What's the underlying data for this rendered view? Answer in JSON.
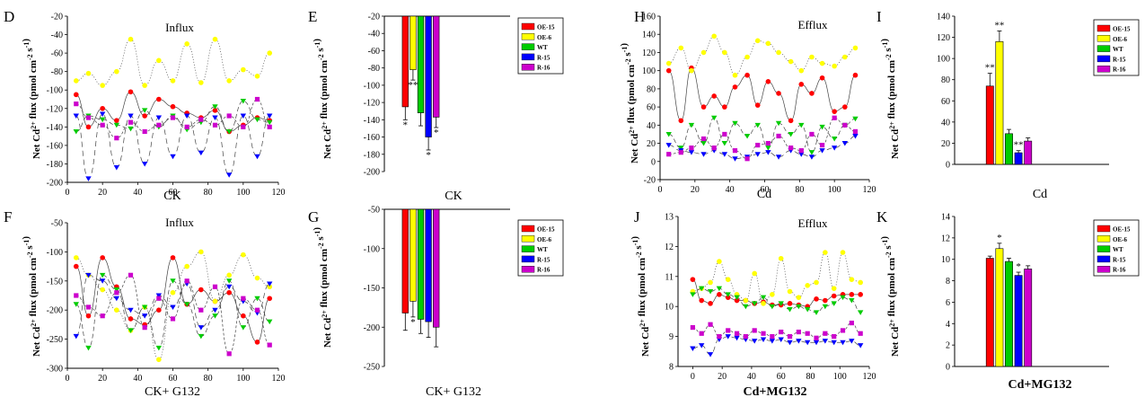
{
  "colors": {
    "OE-15": "#ff0000",
    "OE-6": "#ffff00",
    "WT": "#00cc00",
    "R-15": "#0000ff",
    "R-16": "#cc00cc"
  },
  "legend_labels": [
    "OE-15",
    "OE-6",
    "WT",
    "R-15",
    "R-16"
  ],
  "chart_data": [
    {
      "panel": "D",
      "type": "line",
      "annotation": "Influx",
      "xlabel": "CK",
      "ylabel": "Net Cd2+ flux (pmol cm-2 s-1)",
      "xlim": [
        0,
        120
      ],
      "ylim": [
        -200,
        -20
      ],
      "xticks": [
        0,
        20,
        40,
        60,
        80,
        100,
        120
      ],
      "yticks": [
        -20,
        -40,
        -60,
        -80,
        -100,
        -120,
        -140,
        -160,
        -180,
        -200
      ],
      "series": [
        {
          "name": "OE-15",
          "marker": "circle",
          "x": [
            5,
            12,
            20,
            28,
            36,
            44,
            52,
            60,
            68,
            76,
            84,
            92,
            100,
            108,
            115
          ],
          "y": [
            -105,
            -140,
            -120,
            -133,
            -102,
            -128,
            -110,
            -118,
            -125,
            -130,
            -122,
            -145,
            -138,
            -130,
            -133
          ]
        },
        {
          "name": "OE-6",
          "marker": "circle",
          "x": [
            5,
            12,
            20,
            28,
            36,
            44,
            52,
            60,
            68,
            76,
            84,
            92,
            100,
            108,
            115
          ],
          "y": [
            -90,
            -82,
            -95,
            -80,
            -45,
            -95,
            -68,
            -90,
            -50,
            -92,
            -45,
            -90,
            -78,
            -85,
            -60
          ]
        },
        {
          "name": "WT",
          "marker": "triangle-down",
          "x": [
            5,
            12,
            20,
            28,
            36,
            44,
            52,
            60,
            68,
            76,
            84,
            92,
            100,
            108,
            115
          ],
          "y": [
            -145,
            -128,
            -132,
            -138,
            -142,
            -122,
            -140,
            -128,
            -143,
            -135,
            -118,
            -145,
            -112,
            -132,
            -135
          ]
        },
        {
          "name": "R-15",
          "marker": "triangle-down",
          "x": [
            5,
            12,
            20,
            28,
            36,
            44,
            52,
            60,
            68,
            76,
            84,
            92,
            100,
            108,
            115
          ],
          "y": [
            -128,
            -196,
            -126,
            -184,
            -128,
            -180,
            -130,
            -172,
            -128,
            -168,
            -130,
            -192,
            -128,
            -172,
            -128
          ]
        },
        {
          "name": "R-16",
          "marker": "square",
          "x": [
            5,
            12,
            20,
            28,
            36,
            44,
            52,
            60,
            68,
            76,
            84,
            92,
            100,
            108,
            115
          ],
          "y": [
            -115,
            -130,
            -138,
            -152,
            -135,
            -145,
            -138,
            -130,
            -140,
            -132,
            -138,
            -128,
            -140,
            -110,
            -140
          ]
        }
      ]
    },
    {
      "panel": "E",
      "type": "bar",
      "xlabel": "CK",
      "ylabel": "Net Cd2+ flux (pmol cm-2 s-1)",
      "ylim": [
        -200,
        -20
      ],
      "yticks": [
        -20,
        -40,
        -60,
        -80,
        -100,
        -120,
        -140,
        -160,
        -180,
        -200
      ],
      "categories": [
        "OE-15",
        "OE-6",
        "WT",
        "R-15",
        "R-16"
      ],
      "values": [
        -125,
        -82,
        -132,
        -160,
        -137
      ],
      "errors": [
        15,
        12,
        15,
        15,
        12
      ],
      "sig": [
        "*",
        "**",
        "",
        "*",
        "*"
      ]
    },
    {
      "panel": "F",
      "type": "line",
      "annotation": "Influx",
      "xlabel": "CK+ G132",
      "ylabel": "Net Cd2+ flux (pmol cm-2 s-1)",
      "xlim": [
        0,
        120
      ],
      "ylim": [
        -300,
        -50
      ],
      "xticks": [
        0,
        20,
        40,
        60,
        80,
        100,
        120
      ],
      "yticks": [
        -50,
        -100,
        -150,
        -200,
        -250,
        -300
      ],
      "series": [
        {
          "name": "OE-15",
          "marker": "circle",
          "x": [
            5,
            12,
            20,
            28,
            36,
            44,
            52,
            60,
            68,
            76,
            84,
            92,
            100,
            108,
            115
          ],
          "y": [
            -125,
            -210,
            -110,
            -160,
            -215,
            -225,
            -200,
            -110,
            -190,
            -165,
            -185,
            -170,
            -210,
            -255,
            -180
          ]
        },
        {
          "name": "OE-6",
          "marker": "circle",
          "x": [
            5,
            12,
            20,
            28,
            36,
            44,
            52,
            60,
            68,
            76,
            84,
            92,
            100,
            108,
            115
          ],
          "y": [
            -110,
            -140,
            -165,
            -200,
            -235,
            -195,
            -285,
            -170,
            -125,
            -100,
            -185,
            -140,
            -105,
            -145,
            -160
          ]
        },
        {
          "name": "WT",
          "marker": "triangle-down",
          "x": [
            5,
            12,
            20,
            28,
            36,
            44,
            52,
            60,
            68,
            76,
            84,
            92,
            100,
            108,
            115
          ],
          "y": [
            -190,
            -265,
            -140,
            -165,
            -235,
            -195,
            -265,
            -150,
            -190,
            -245,
            -210,
            -150,
            -230,
            -180,
            -220
          ]
        },
        {
          "name": "R-15",
          "marker": "triangle-down",
          "x": [
            5,
            12,
            20,
            28,
            36,
            44,
            52,
            60,
            68,
            76,
            84,
            92,
            100,
            108,
            115
          ],
          "y": [
            -245,
            -140,
            -150,
            -180,
            -200,
            -210,
            -175,
            -195,
            -155,
            -230,
            -200,
            -160,
            -185,
            -205,
            -155
          ]
        },
        {
          "name": "R-16",
          "marker": "square",
          "x": [
            5,
            12,
            20,
            28,
            36,
            44,
            52,
            60,
            68,
            76,
            84,
            92,
            100,
            108,
            115
          ],
          "y": [
            -175,
            -195,
            -210,
            -170,
            -140,
            -230,
            -180,
            -215,
            -150,
            -200,
            -160,
            -275,
            -180,
            -200,
            -260
          ]
        }
      ]
    },
    {
      "panel": "G",
      "type": "bar",
      "xlabel": "CK+ G132",
      "ylabel": "Net Cd2+ flux (pmol cm-2 s-1)",
      "ylim": [
        -250,
        -50
      ],
      "yticks": [
        -50,
        -100,
        -150,
        -200,
        -250
      ],
      "categories": [
        "OE-15",
        "OE-6",
        "WT",
        "R-15",
        "R-16"
      ],
      "values": [
        -182,
        -167,
        -190,
        -193,
        -200
      ],
      "errors": [
        22,
        20,
        18,
        20,
        25
      ],
      "sig": [
        "",
        "*",
        "",
        "",
        ""
      ]
    },
    {
      "panel": "H",
      "type": "line",
      "annotation": "Efflux",
      "xlabel": "Cd",
      "ylabel": "Net Cd2+ flux (pmol cm-2 s-1)",
      "xlim": [
        0,
        120
      ],
      "ylim": [
        -20,
        160
      ],
      "xticks": [
        0,
        20,
        40,
        60,
        80,
        100,
        120
      ],
      "yticks": [
        -20,
        0,
        20,
        40,
        60,
        80,
        100,
        120,
        140,
        160
      ],
      "series": [
        {
          "name": "OE-15",
          "marker": "circle",
          "x": [
            5,
            12,
            18,
            25,
            31,
            37,
            43,
            50,
            56,
            62,
            68,
            75,
            81,
            87,
            93,
            100,
            106,
            112
          ],
          "y": [
            100,
            45,
            103,
            60,
            72,
            60,
            82,
            95,
            62,
            88,
            75,
            45,
            85,
            75,
            92,
            55,
            60,
            95
          ]
        },
        {
          "name": "OE-6",
          "marker": "circle",
          "x": [
            5,
            12,
            18,
            25,
            31,
            37,
            43,
            50,
            56,
            62,
            68,
            75,
            81,
            87,
            93,
            100,
            106,
            112
          ],
          "y": [
            108,
            125,
            100,
            120,
            138,
            120,
            95,
            115,
            133,
            130,
            120,
            110,
            100,
            115,
            108,
            105,
            115,
            125
          ]
        },
        {
          "name": "WT",
          "marker": "triangle-down",
          "x": [
            5,
            12,
            18,
            25,
            31,
            37,
            43,
            50,
            56,
            62,
            68,
            75,
            81,
            87,
            93,
            100,
            106,
            112
          ],
          "y": [
            30,
            15,
            40,
            20,
            48,
            20,
            42,
            28,
            40,
            15,
            42,
            30,
            40,
            10,
            38,
            25,
            40,
            47
          ]
        },
        {
          "name": "R-15",
          "marker": "triangle-down",
          "x": [
            5,
            12,
            18,
            25,
            31,
            37,
            43,
            50,
            56,
            62,
            68,
            75,
            81,
            87,
            93,
            100,
            106,
            112
          ],
          "y": [
            18,
            12,
            10,
            8,
            12,
            8,
            3,
            5,
            8,
            10,
            5,
            12,
            8,
            5,
            12,
            15,
            20,
            28
          ]
        },
        {
          "name": "R-16",
          "marker": "square",
          "x": [
            5,
            12,
            18,
            25,
            31,
            37,
            43,
            50,
            56,
            62,
            68,
            75,
            81,
            87,
            93,
            100,
            106,
            112
          ],
          "y": [
            8,
            10,
            15,
            25,
            15,
            30,
            12,
            3,
            18,
            20,
            28,
            15,
            12,
            30,
            18,
            48,
            40,
            33
          ]
        }
      ]
    },
    {
      "panel": "I",
      "type": "bar",
      "xlabel": "Cd",
      "ylabel": "Net Cd2+ flux (pmol cm-2 s-1)",
      "ylim": [
        0,
        140
      ],
      "yticks": [
        0,
        20,
        40,
        60,
        80,
        100,
        120,
        140
      ],
      "categories": [
        "OE-15",
        "OE-6",
        "WT",
        "R-15",
        "R-16"
      ],
      "values": [
        74,
        116,
        29,
        11,
        22
      ],
      "errors": [
        12,
        10,
        4,
        2,
        3
      ],
      "sig": [
        "**",
        "**",
        "",
        "**",
        ""
      ]
    },
    {
      "panel": "J",
      "type": "line",
      "annotation": "Efflux",
      "xlabel": "Cd+MG132",
      "ylabel": "Net Cd2+ flux (pmol cm-2 s-1)",
      "xlim": [
        -10,
        120
      ],
      "ylim": [
        8,
        13
      ],
      "xticks": [
        0,
        20,
        40,
        60,
        80,
        100,
        120
      ],
      "yticks": [
        8,
        9,
        10,
        11,
        12,
        13
      ],
      "series": [
        {
          "name": "OE-15",
          "marker": "circle",
          "x": [
            0,
            6,
            12,
            18,
            24,
            30,
            36,
            42,
            48,
            54,
            60,
            66,
            72,
            78,
            84,
            90,
            96,
            102,
            108,
            114
          ],
          "y": [
            10.9,
            10.2,
            10.1,
            10.4,
            10.3,
            10.2,
            10.2,
            10.1,
            10.15,
            10.05,
            10.05,
            10.1,
            10.05,
            10.0,
            10.25,
            10.2,
            10.35,
            10.4,
            10.4,
            10.4
          ]
        },
        {
          "name": "OE-6",
          "marker": "circle",
          "x": [
            0,
            6,
            12,
            18,
            24,
            30,
            36,
            42,
            48,
            54,
            60,
            66,
            72,
            78,
            84,
            90,
            96,
            102,
            108,
            114
          ],
          "y": [
            10.5,
            10.6,
            10.8,
            11.5,
            10.9,
            10.4,
            10.2,
            11.1,
            10.1,
            10.4,
            11.6,
            10.5,
            10.3,
            10.7,
            10.8,
            11.8,
            10.6,
            11.8,
            10.9,
            10.8
          ]
        },
        {
          "name": "WT",
          "marker": "triangle-down",
          "x": [
            0,
            6,
            12,
            18,
            24,
            30,
            36,
            42,
            48,
            54,
            60,
            66,
            72,
            78,
            84,
            90,
            96,
            102,
            108,
            114
          ],
          "y": [
            10.4,
            10.6,
            10.5,
            10.6,
            10.4,
            10.3,
            10.0,
            10.1,
            10.3,
            10.0,
            10.1,
            9.9,
            10.0,
            9.9,
            9.8,
            10.0,
            10.1,
            10.3,
            10.2,
            9.8
          ]
        },
        {
          "name": "R-15",
          "marker": "triangle-down",
          "x": [
            0,
            6,
            12,
            18,
            24,
            30,
            36,
            42,
            48,
            54,
            60,
            66,
            72,
            78,
            84,
            90,
            96,
            102,
            108,
            114
          ],
          "y": [
            8.6,
            8.7,
            8.4,
            8.9,
            9.0,
            8.95,
            8.9,
            8.85,
            8.9,
            8.85,
            8.9,
            8.8,
            8.85,
            8.8,
            8.8,
            8.85,
            8.8,
            8.8,
            8.85,
            8.7
          ]
        },
        {
          "name": "R-16",
          "marker": "square",
          "x": [
            0,
            6,
            12,
            18,
            24,
            30,
            36,
            42,
            48,
            54,
            60,
            66,
            72,
            78,
            84,
            90,
            96,
            102,
            108,
            114
          ],
          "y": [
            9.3,
            9.1,
            9.4,
            9.0,
            9.2,
            9.1,
            9.0,
            9.2,
            9.1,
            9.0,
            9.15,
            9.0,
            9.15,
            9.1,
            8.95,
            9.1,
            9.0,
            9.2,
            9.45,
            9.1
          ]
        }
      ]
    },
    {
      "panel": "K",
      "type": "bar",
      "xlabel": "Cd+MG132",
      "ylabel": "Net Cd2+ flux (pmol cm-2 s-1)",
      "ylim": [
        0,
        14
      ],
      "yticks": [
        0,
        2,
        4,
        6,
        8,
        10,
        12,
        14
      ],
      "categories": [
        "OE-15",
        "OE-6",
        "WT",
        "R-15",
        "R-16"
      ],
      "values": [
        10.1,
        11.0,
        9.8,
        8.5,
        9.1
      ],
      "errors": [
        0.2,
        0.5,
        0.3,
        0.3,
        0.3
      ],
      "sig": [
        "",
        "*",
        "",
        "*",
        ""
      ]
    }
  ]
}
